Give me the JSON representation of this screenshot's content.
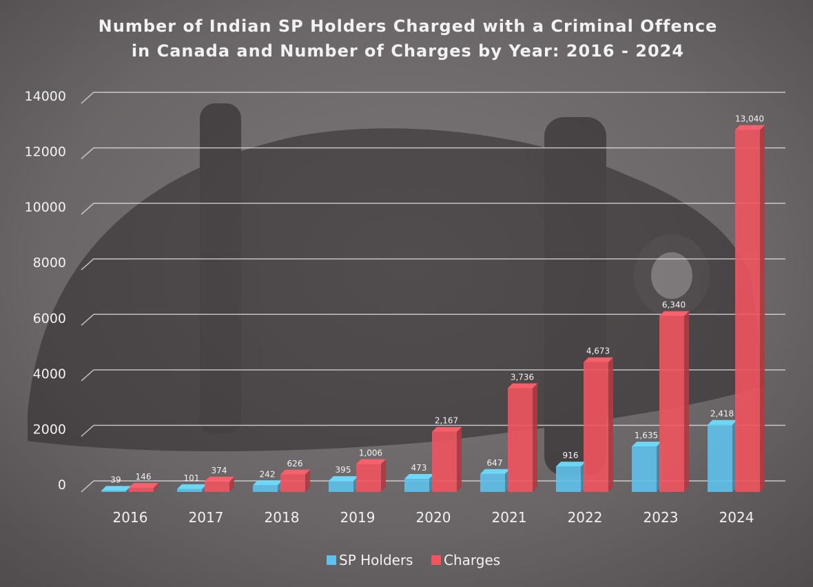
{
  "chart_data": {
    "type": "bar",
    "title": "Number of Indian SP Holders Charged with a Criminal Offence",
    "subtitle": "in Canada and Number of Charges by Year: 2016 - 2024",
    "categories": [
      "2016",
      "2017",
      "2018",
      "2019",
      "2020",
      "2021",
      "2022",
      "2023",
      "2024"
    ],
    "series": [
      {
        "name": "SP Holders",
        "color": "#5fc1ec",
        "values": [
          39,
          101,
          242,
          395,
          473,
          647,
          916,
          1635,
          2418
        ],
        "labels": [
          "39",
          "101",
          "242",
          "395",
          "473",
          "647",
          "916",
          "1,635",
          "2,418"
        ]
      },
      {
        "name": "Charges",
        "color": "#f0545f",
        "values": [
          146,
          374,
          626,
          1006,
          2167,
          3736,
          4673,
          6340,
          13040
        ],
        "labels": [
          "146",
          "374",
          "626",
          "1,006",
          "2,167",
          "3,736",
          "4,673",
          "6,340",
          "13,040"
        ]
      }
    ],
    "y_ticks": [
      "0",
      "2000",
      "4000",
      "6000",
      "8000",
      "10000",
      "12000",
      "14000"
    ],
    "ylim": [
      0,
      14000
    ],
    "grid": true,
    "legend_position": "bottom-center",
    "bar_style": "3d"
  }
}
